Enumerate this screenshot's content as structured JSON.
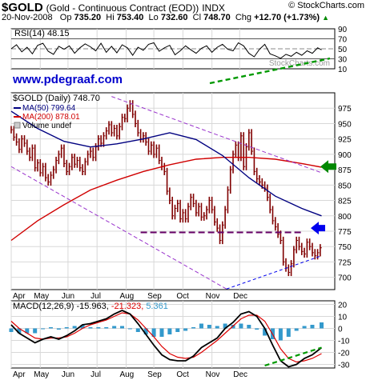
{
  "header": {
    "ticker": "$GOLD",
    "name": "(Gold - Continuous Contract (EOD))",
    "exchange": "INDX",
    "brand": "© StockCharts.com",
    "date": "20-Nov-2008",
    "op_label": "Op",
    "op": "735.20",
    "hi_label": "Hi",
    "hi": "753.40",
    "lo_label": "Lo",
    "lo": "732.60",
    "cl_label": "Cl",
    "cl": "748.70",
    "chg_label": "Chg",
    "chg": "+12.70 (+1.73%)",
    "chg_arrow": "▲"
  },
  "colors": {
    "price_bar": "#800000",
    "ma50": "#000080",
    "ma200": "#d00000",
    "channel": "#9933cc",
    "support": "#660066",
    "trend": "#009900",
    "arrow_green": "#008800",
    "arrow_blue": "#0000ee",
    "url": "#0000cc",
    "macd_hist": "#3399cc",
    "grid": "#d8d8d8"
  },
  "annotations": {
    "url": "www.pdegraaf.com",
    "rsi_watermark": "StockCharts.com"
  },
  "chart_data": [
    {
      "type": "line",
      "panel": "rsi",
      "title": "RSI(14) 48.15",
      "ylim": [
        10,
        90
      ],
      "yticks": [
        10,
        30,
        50,
        70,
        90
      ],
      "reference_lines": [
        30,
        50,
        70
      ],
      "x": [
        0,
        4,
        8,
        12,
        16,
        20,
        24,
        28,
        32,
        36,
        40,
        44,
        48,
        52,
        56,
        60,
        64,
        68,
        72,
        76,
        80,
        84,
        88,
        92,
        96,
        100,
        104,
        108,
        112,
        116,
        120,
        124,
        128,
        132,
        136,
        140,
        144,
        148,
        152,
        156,
        160,
        164,
        168,
        172,
        176,
        180,
        184,
        188,
        192,
        196,
        200,
        204,
        208,
        212,
        216,
        220,
        224,
        228,
        232,
        235
      ],
      "values": [
        50,
        58,
        44,
        53,
        40,
        57,
        61,
        45,
        39,
        55,
        49,
        56,
        41,
        52,
        60,
        54,
        46,
        61,
        43,
        55,
        42,
        58,
        52,
        37,
        53,
        47,
        59,
        62,
        45,
        52,
        57,
        38,
        46,
        56,
        48,
        41,
        51,
        56,
        43,
        53,
        59,
        49,
        46,
        62,
        56,
        41,
        34,
        49,
        59,
        40,
        36,
        31,
        39,
        35,
        43,
        37,
        46,
        41,
        52,
        48
      ]
    },
    {
      "type": "bar",
      "panel": "price",
      "title": "$GOLD (Daily) 748.70",
      "legend": [
        "MA(50) 799.64",
        "MA(200) 878.01",
        "Volume undef"
      ],
      "legend_placement": "top-left",
      "ylim": [
        680,
        1000
      ],
      "yticks": [
        700,
        725,
        750,
        775,
        800,
        825,
        850,
        875,
        900,
        925,
        950,
        975
      ],
      "xticks": [
        "Apr",
        "May",
        "Jun",
        "Jul",
        "Aug",
        "Sep",
        "Oct",
        "Nov",
        "Dec"
      ],
      "grid": true,
      "close": [
        940,
        928,
        920,
        908,
        925,
        918,
        905,
        895,
        910,
        878,
        886,
        870,
        880,
        862,
        855,
        866,
        875,
        890,
        900,
        910,
        885,
        872,
        880,
        895,
        884,
        890,
        878,
        872,
        888,
        900,
        905,
        895,
        912,
        925,
        918,
        930,
        938,
        948,
        935,
        942,
        930,
        945,
        960,
        958,
        975,
        982,
        965,
        950,
        935,
        925,
        930,
        920,
        905,
        915,
        900,
        910,
        890,
        880,
        872,
        840,
        825,
        800,
        812,
        820,
        795,
        805,
        795,
        815,
        830,
        820,
        805,
        815,
        798,
        800,
        810,
        825,
        810,
        790,
        780,
        760,
        785,
        810,
        842,
        875,
        900,
        915,
        895,
        930,
        880,
        912,
        935,
        905,
        872,
        860,
        855,
        850,
        845,
        830,
        810,
        792,
        782,
        770,
        760,
        725,
        715,
        708,
        722,
        745,
        760,
        750,
        742,
        738,
        757,
        750,
        740,
        735,
        740,
        748
      ],
      "series": [
        {
          "name": "MA(50)",
          "values": [
            [
              0,
              970
            ],
            [
              20,
              942
            ],
            [
              40,
              921
            ],
            [
              60,
              912
            ],
            [
              80,
              917
            ],
            [
              100,
              925
            ],
            [
              120,
              935
            ],
            [
              140,
              924
            ],
            [
              160,
              898
            ],
            [
              180,
              862
            ],
            [
              200,
              832
            ],
            [
              220,
              812
            ],
            [
              235,
              800
            ]
          ]
        },
        {
          "name": "MA(200)",
          "values": [
            [
              0,
              760
            ],
            [
              20,
              792
            ],
            [
              40,
              818
            ],
            [
              60,
              842
            ],
            [
              80,
              858
            ],
            [
              100,
              872
            ],
            [
              120,
              883
            ],
            [
              140,
              892
            ],
            [
              160,
              895
            ],
            [
              180,
              895
            ],
            [
              200,
              892
            ],
            [
              220,
              885
            ],
            [
              235,
              879
            ]
          ]
        }
      ],
      "trendlines": [
        {
          "kind": "channel-upper",
          "from": [
            76,
            994
          ],
          "to": [
            235,
            870
          ]
        },
        {
          "kind": "channel-lower",
          "from": [
            0,
            880
          ],
          "to": [
            163,
            681
          ]
        },
        {
          "kind": "channel-lower-ext",
          "from": [
            163,
            681
          ],
          "to": [
            235,
            735
          ]
        },
        {
          "kind": "support",
          "from": [
            98,
            773
          ],
          "to": [
            220,
            773
          ]
        }
      ]
    },
    {
      "type": "line",
      "panel": "macd",
      "title": "MACD(12,26,9) -15.963, -21.323, 5.361",
      "legend": [
        "MACD(12,26,9) -15.963",
        "-21.323",
        "5.361"
      ],
      "ylim": [
        -33,
        23
      ],
      "yticks": [
        -30,
        -20,
        -10,
        0,
        10,
        20
      ],
      "xticks": [
        "Apr",
        "May",
        "Jun",
        "Jul",
        "Aug",
        "Sep",
        "Oct",
        "Nov",
        "Dec"
      ],
      "x": [
        0,
        6,
        12,
        18,
        24,
        30,
        36,
        42,
        48,
        54,
        60,
        66,
        72,
        78,
        84,
        90,
        96,
        102,
        108,
        114,
        120,
        126,
        132,
        138,
        144,
        150,
        156,
        162,
        168,
        174,
        180,
        186,
        192,
        198,
        204,
        210,
        216,
        222,
        228,
        235
      ],
      "series": [
        {
          "name": "MACD",
          "values": [
            3,
            -4,
            -8,
            -12,
            -9,
            -7,
            -9,
            -6,
            -2,
            3,
            4,
            6,
            8,
            12,
            15,
            12,
            4,
            -5,
            -14,
            -22,
            -26,
            -27,
            -27,
            -23,
            -16,
            -12,
            -8,
            0,
            5,
            12,
            14,
            10,
            0,
            -14,
            -27,
            -32,
            -30,
            -25,
            -22,
            -16
          ]
        },
        {
          "name": "Signal",
          "values": [
            6,
            0,
            -4,
            -8,
            -9,
            -8,
            -8,
            -7,
            -4,
            0,
            3,
            5,
            7,
            10,
            13,
            12,
            7,
            0,
            -7,
            -15,
            -21,
            -24,
            -25,
            -24,
            -20,
            -15,
            -10,
            -4,
            2,
            8,
            11,
            11,
            6,
            -5,
            -17,
            -25,
            -28,
            -27,
            -25,
            -21
          ]
        },
        {
          "name": "Histogram",
          "values": [
            -3,
            -4,
            -4,
            -4,
            0,
            1,
            -1,
            1,
            2,
            3,
            1,
            1,
            1,
            2,
            2,
            0,
            -3,
            -5,
            -7,
            -7,
            -5,
            -3,
            -2,
            1,
            4,
            3,
            2,
            4,
            3,
            4,
            3,
            -1,
            -6,
            -9,
            -10,
            -7,
            -2,
            2,
            3,
            5
          ]
        }
      ],
      "trendlines": [
        {
          "kind": "rising-lows",
          "from": [
            192,
            -31
          ],
          "to": [
            235,
            -16
          ]
        }
      ]
    }
  ]
}
